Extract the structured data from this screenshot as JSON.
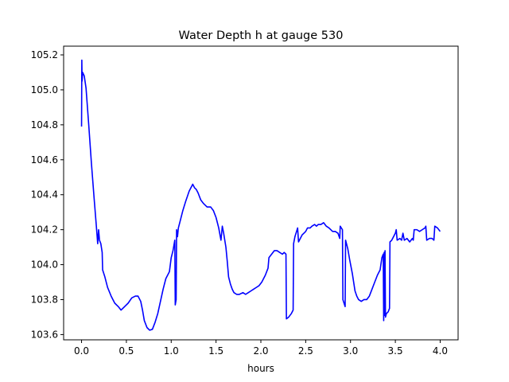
{
  "chart_data": {
    "type": "line",
    "title": "Water Depth h at gauge 530",
    "xlabel": "hours",
    "ylabel": "",
    "xlim": [
      -0.2,
      4.2
    ],
    "ylim": [
      103.57,
      105.25
    ],
    "xticks": [
      0.0,
      0.5,
      1.0,
      1.5,
      2.0,
      2.5,
      3.0,
      3.5,
      4.0
    ],
    "xtick_labels": [
      "0.0",
      "0.5",
      "1.0",
      "1.5",
      "2.0",
      "2.5",
      "3.0",
      "3.5",
      "4.0"
    ],
    "yticks": [
      103.6,
      103.8,
      104.0,
      104.2,
      104.4,
      104.6,
      104.8,
      105.0,
      105.2
    ],
    "ytick_labels": [
      "103.6",
      "103.8",
      "104.0",
      "104.2",
      "104.4",
      "104.6",
      "104.8",
      "105.0",
      "105.2"
    ],
    "grid": false,
    "series": [
      {
        "name": "",
        "color": "#0000ff",
        "points": [
          [
            0.0,
            104.79
          ],
          [
            0.003,
            105.17
          ],
          [
            0.006,
            105.05
          ],
          [
            0.012,
            105.1
          ],
          [
            0.03,
            105.08
          ],
          [
            0.05,
            105.01
          ],
          [
            0.08,
            104.8
          ],
          [
            0.11,
            104.58
          ],
          [
            0.14,
            104.38
          ],
          [
            0.165,
            104.22
          ],
          [
            0.18,
            104.12
          ],
          [
            0.19,
            104.2
          ],
          [
            0.2,
            104.14
          ],
          [
            0.215,
            104.12
          ],
          [
            0.23,
            104.07
          ],
          [
            0.235,
            103.97
          ],
          [
            0.26,
            103.93
          ],
          [
            0.29,
            103.87
          ],
          [
            0.33,
            103.82
          ],
          [
            0.37,
            103.78
          ],
          [
            0.41,
            103.76
          ],
          [
            0.44,
            103.74
          ],
          [
            0.48,
            103.76
          ],
          [
            0.52,
            103.78
          ],
          [
            0.56,
            103.81
          ],
          [
            0.6,
            103.82
          ],
          [
            0.63,
            103.82
          ],
          [
            0.66,
            103.79
          ],
          [
            0.68,
            103.74
          ],
          [
            0.7,
            103.68
          ],
          [
            0.73,
            103.64
          ],
          [
            0.76,
            103.625
          ],
          [
            0.79,
            103.63
          ],
          [
            0.82,
            103.67
          ],
          [
            0.85,
            103.72
          ],
          [
            0.88,
            103.79
          ],
          [
            0.91,
            103.86
          ],
          [
            0.94,
            103.92
          ],
          [
            0.98,
            103.96
          ],
          [
            1.0,
            104.04
          ],
          [
            1.02,
            104.08
          ],
          [
            1.04,
            104.14
          ],
          [
            1.045,
            103.77
          ],
          [
            1.055,
            103.8
          ],
          [
            1.06,
            104.2
          ],
          [
            1.07,
            104.16
          ],
          [
            1.08,
            104.21
          ],
          [
            1.1,
            104.25
          ],
          [
            1.13,
            104.31
          ],
          [
            1.16,
            104.36
          ],
          [
            1.2,
            104.42
          ],
          [
            1.24,
            104.46
          ],
          [
            1.26,
            104.44
          ],
          [
            1.28,
            104.43
          ],
          [
            1.3,
            104.41
          ],
          [
            1.33,
            104.37
          ],
          [
            1.36,
            104.35
          ],
          [
            1.4,
            104.33
          ],
          [
            1.44,
            104.33
          ],
          [
            1.47,
            104.31
          ],
          [
            1.5,
            104.27
          ],
          [
            1.53,
            104.21
          ],
          [
            1.555,
            104.14
          ],
          [
            1.57,
            104.22
          ],
          [
            1.585,
            104.18
          ],
          [
            1.61,
            104.1
          ],
          [
            1.625,
            104.02
          ],
          [
            1.64,
            103.93
          ],
          [
            1.66,
            103.89
          ],
          [
            1.68,
            103.86
          ],
          [
            1.7,
            103.84
          ],
          [
            1.73,
            103.83
          ],
          [
            1.76,
            103.83
          ],
          [
            1.8,
            103.84
          ],
          [
            1.83,
            103.83
          ],
          [
            1.86,
            103.84
          ],
          [
            1.89,
            103.85
          ],
          [
            1.92,
            103.86
          ],
          [
            1.95,
            103.87
          ],
          [
            1.98,
            103.88
          ],
          [
            2.01,
            103.9
          ],
          [
            2.05,
            103.94
          ],
          [
            2.08,
            103.98
          ],
          [
            2.09,
            104.04
          ],
          [
            2.12,
            104.06
          ],
          [
            2.15,
            104.08
          ],
          [
            2.18,
            104.08
          ],
          [
            2.21,
            104.07
          ],
          [
            2.24,
            104.06
          ],
          [
            2.26,
            104.07
          ],
          [
            2.28,
            104.06
          ],
          [
            2.285,
            103.69
          ],
          [
            2.31,
            103.7
          ],
          [
            2.34,
            103.72
          ],
          [
            2.36,
            103.74
          ],
          [
            2.365,
            104.12
          ],
          [
            2.38,
            104.16
          ],
          [
            2.41,
            104.21
          ],
          [
            2.42,
            104.13
          ],
          [
            2.44,
            104.15
          ],
          [
            2.46,
            104.17
          ],
          [
            2.48,
            104.18
          ],
          [
            2.5,
            104.19
          ],
          [
            2.52,
            104.21
          ],
          [
            2.55,
            104.21
          ],
          [
            2.57,
            104.22
          ],
          [
            2.6,
            104.23
          ],
          [
            2.62,
            104.22
          ],
          [
            2.64,
            104.23
          ],
          [
            2.67,
            104.23
          ],
          [
            2.7,
            104.24
          ],
          [
            2.73,
            104.22
          ],
          [
            2.76,
            104.21
          ],
          [
            2.8,
            104.19
          ],
          [
            2.83,
            104.19
          ],
          [
            2.86,
            104.18
          ],
          [
            2.88,
            104.15
          ],
          [
            2.885,
            104.22
          ],
          [
            2.91,
            104.2
          ],
          [
            2.915,
            103.8
          ],
          [
            2.94,
            103.76
          ],
          [
            2.945,
            104.14
          ],
          [
            2.97,
            104.09
          ],
          [
            2.99,
            104.03
          ],
          [
            3.02,
            103.95
          ],
          [
            3.05,
            103.85
          ],
          [
            3.07,
            103.82
          ],
          [
            3.09,
            103.8
          ],
          [
            3.12,
            103.79
          ],
          [
            3.15,
            103.8
          ],
          [
            3.18,
            103.8
          ],
          [
            3.21,
            103.82
          ],
          [
            3.24,
            103.86
          ],
          [
            3.27,
            103.9
          ],
          [
            3.3,
            103.94
          ],
          [
            3.33,
            103.97
          ],
          [
            3.35,
            104.04
          ],
          [
            3.365,
            104.06
          ],
          [
            3.37,
            103.68
          ],
          [
            3.375,
            104.07
          ],
          [
            3.38,
            103.71
          ],
          [
            3.385,
            104.08
          ],
          [
            3.39,
            103.7
          ],
          [
            3.4,
            103.72
          ],
          [
            3.42,
            103.73
          ],
          [
            3.435,
            103.75
          ],
          [
            3.44,
            104.13
          ],
          [
            3.46,
            104.14
          ],
          [
            3.48,
            104.16
          ],
          [
            3.5,
            104.18
          ],
          [
            3.51,
            104.2
          ],
          [
            3.52,
            104.14
          ],
          [
            3.55,
            104.15
          ],
          [
            3.57,
            104.14
          ],
          [
            3.585,
            104.18
          ],
          [
            3.6,
            104.14
          ],
          [
            3.63,
            104.15
          ],
          [
            3.66,
            104.13
          ],
          [
            3.69,
            104.15
          ],
          [
            3.7,
            104.14
          ],
          [
            3.71,
            104.2
          ],
          [
            3.74,
            104.2
          ],
          [
            3.77,
            104.19
          ],
          [
            3.8,
            104.2
          ],
          [
            3.83,
            104.21
          ],
          [
            3.84,
            104.22
          ],
          [
            3.85,
            104.14
          ],
          [
            3.88,
            104.15
          ],
          [
            3.91,
            104.15
          ],
          [
            3.93,
            104.14
          ],
          [
            3.94,
            104.22
          ],
          [
            3.97,
            104.21
          ],
          [
            4.0,
            104.19
          ]
        ]
      }
    ]
  }
}
